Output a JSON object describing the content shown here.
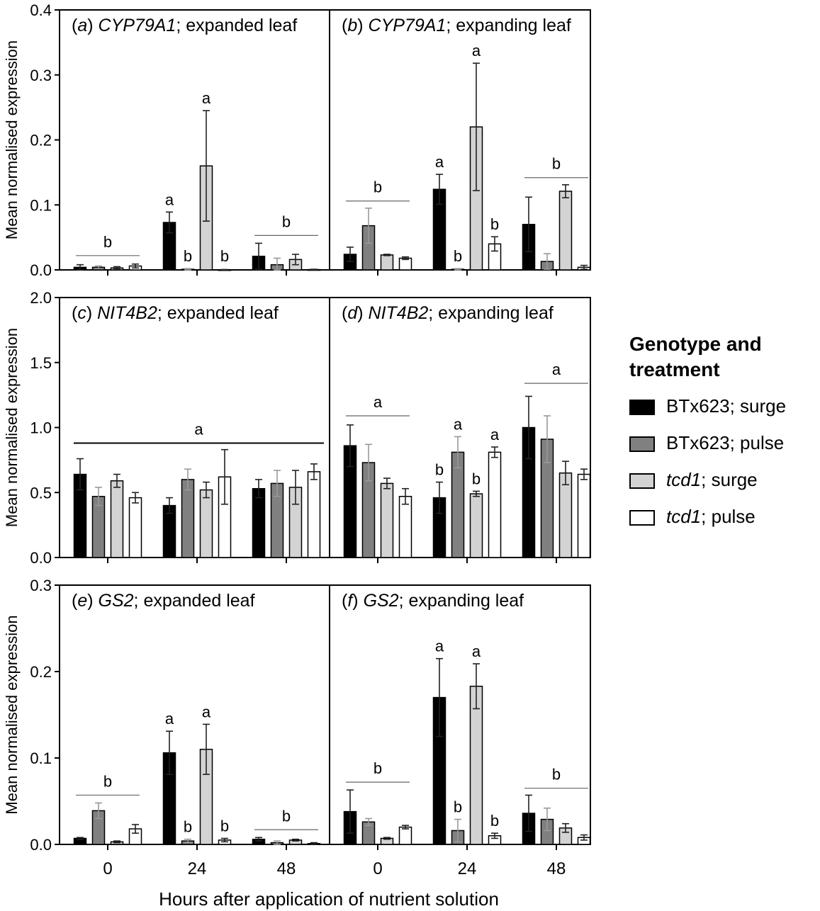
{
  "chart_data": {
    "type": "bar",
    "xlabel": "Hours after application of nutrient solution",
    "ylabel": "Mean normalised expression",
    "categories": [
      "0",
      "24",
      "48"
    ],
    "series_names": [
      "BTx623; surge",
      "BTx623; pulse",
      "tcd1; surge",
      "tcd1; pulse"
    ],
    "series_colors": [
      "#000000",
      "#808080",
      "#d3d3d3",
      "#ffffff"
    ],
    "panels": [
      {
        "id": "a",
        "gene": "CYP79A1",
        "tissue": "expanded leaf",
        "ylim": [
          0,
          0.4
        ],
        "yticks": [
          "0.0",
          "0.1",
          "0.2",
          "0.3",
          "0.4"
        ],
        "values": [
          [
            0.004,
            0.004,
            0.003,
            0.006
          ],
          [
            0.073,
            0.001,
            0.16,
            0.0003
          ],
          [
            0.021,
            0.008,
            0.016,
            0.0005
          ]
        ],
        "errors": [
          [
            0.004,
            0.002,
            0.002,
            0.003
          ],
          [
            0.016,
            0.001,
            0.085,
            0.0003
          ],
          [
            0.02,
            0.01,
            0.008,
            0.0005
          ]
        ],
        "bar_letters": [
          null,
          [
            "a",
            "b",
            "a",
            "b"
          ],
          null
        ],
        "group_letters": [
          {
            "x_from": 0,
            "x_to": 0,
            "y": 0.022,
            "text": "b"
          },
          {
            "x_from": 2,
            "x_to": 2,
            "y": 0.053,
            "text": "b"
          }
        ]
      },
      {
        "id": "b",
        "gene": "CYP79A1",
        "tissue": "expanding leaf",
        "ylim": [
          0,
          0.4
        ],
        "yticks": [
          "0.0",
          "0.1",
          "0.2",
          "0.3",
          "0.4"
        ],
        "values": [
          [
            0.024,
            0.068,
            0.023,
            0.018
          ],
          [
            0.124,
            0.001,
            0.22,
            0.04
          ],
          [
            0.07,
            0.013,
            0.121,
            0.004
          ]
        ],
        "errors": [
          [
            0.011,
            0.027,
            0.001,
            0.002
          ],
          [
            0.023,
            0.001,
            0.098,
            0.011
          ],
          [
            0.042,
            0.012,
            0.01,
            0.003
          ]
        ],
        "bar_letters": [
          null,
          [
            "a",
            "b",
            "a",
            "b"
          ],
          null
        ],
        "group_letters": [
          {
            "x_from": 0,
            "x_to": 0,
            "y": 0.106,
            "text": "b"
          },
          {
            "x_from": 2,
            "x_to": 2,
            "y": 0.142,
            "text": "b"
          }
        ]
      },
      {
        "id": "c",
        "gene": "NIT4B2",
        "tissue": "expanded leaf",
        "ylim": [
          0,
          2.0
        ],
        "yticks": [
          "0.0",
          "0.5",
          "1.0",
          "1.5",
          "2.0"
        ],
        "values": [
          [
            0.64,
            0.47,
            0.59,
            0.46
          ],
          [
            0.4,
            0.6,
            0.52,
            0.62
          ],
          [
            0.53,
            0.57,
            0.54,
            0.66
          ]
        ],
        "errors": [
          [
            0.12,
            0.07,
            0.05,
            0.04
          ],
          [
            0.06,
            0.08,
            0.06,
            0.21
          ],
          [
            0.07,
            0.1,
            0.13,
            0.06
          ]
        ],
        "bar_letters": [
          null,
          null,
          null
        ],
        "group_letters": [
          {
            "x_from": 0,
            "x_to": 2,
            "y": 0.88,
            "text": "a"
          }
        ]
      },
      {
        "id": "d",
        "gene": "NIT4B2",
        "tissue": "expanding leaf",
        "ylim": [
          0,
          2.0
        ],
        "yticks": [
          "0.0",
          "0.5",
          "1.0",
          "1.5",
          "2.0"
        ],
        "values": [
          [
            0.86,
            0.73,
            0.57,
            0.47
          ],
          [
            0.46,
            0.81,
            0.49,
            0.81
          ],
          [
            1.0,
            0.91,
            0.65,
            0.64
          ]
        ],
        "errors": [
          [
            0.16,
            0.14,
            0.04,
            0.06
          ],
          [
            0.12,
            0.12,
            0.02,
            0.04
          ],
          [
            0.24,
            0.18,
            0.09,
            0.04
          ]
        ],
        "bar_letters": [
          null,
          [
            "b",
            "a",
            "b",
            "a"
          ],
          null
        ],
        "group_letters": [
          {
            "x_from": 0,
            "x_to": 0,
            "y": 1.09,
            "text": "a"
          },
          {
            "x_from": 2,
            "x_to": 2,
            "y": 1.34,
            "text": "a"
          }
        ]
      },
      {
        "id": "e",
        "gene": "GS2",
        "tissue": "expanded leaf",
        "ylim": [
          0,
          0.3
        ],
        "yticks": [
          "0.0",
          "0.1",
          "0.2",
          "0.3"
        ],
        "values": [
          [
            0.007,
            0.039,
            0.003,
            0.018
          ],
          [
            0.106,
            0.004,
            0.11,
            0.005
          ],
          [
            0.006,
            0.002,
            0.005,
            0.001
          ]
        ],
        "errors": [
          [
            0.001,
            0.009,
            0.001,
            0.005
          ],
          [
            0.025,
            0.002,
            0.029,
            0.002
          ],
          [
            0.002,
            0.002,
            0.001,
            0.001
          ]
        ],
        "bar_letters": [
          null,
          [
            "a",
            "b",
            "a",
            "b"
          ],
          null
        ],
        "group_letters": [
          {
            "x_from": 0,
            "x_to": 0,
            "y": 0.057,
            "text": "b"
          },
          {
            "x_from": 2,
            "x_to": 2,
            "y": 0.017,
            "text": "b"
          }
        ]
      },
      {
        "id": "f",
        "gene": "GS2",
        "tissue": "expanding leaf",
        "ylim": [
          0,
          0.3
        ],
        "yticks": [
          "0.0",
          "0.1",
          "0.2",
          "0.3"
        ],
        "values": [
          [
            0.038,
            0.026,
            0.007,
            0.02
          ],
          [
            0.17,
            0.016,
            0.183,
            0.01
          ],
          [
            0.036,
            0.029,
            0.019,
            0.008
          ]
        ],
        "errors": [
          [
            0.025,
            0.004,
            0.001,
            0.002
          ],
          [
            0.045,
            0.013,
            0.026,
            0.003
          ],
          [
            0.021,
            0.013,
            0.005,
            0.003
          ]
        ],
        "bar_letters": [
          null,
          [
            "a",
            "b",
            "a",
            "b"
          ],
          null
        ],
        "group_letters": [
          {
            "x_from": 0,
            "x_to": 0,
            "y": 0.072,
            "text": "b"
          },
          {
            "x_from": 2,
            "x_to": 2,
            "y": 0.065,
            "text": "b"
          }
        ]
      }
    ]
  },
  "legend": {
    "title_line1": "Genotype and",
    "title_line2": "treatment",
    "items": [
      {
        "genotype": "BTx623",
        "treatment": "; surge",
        "italic": false
      },
      {
        "genotype": "BTx623",
        "treatment": "; pulse",
        "italic": false
      },
      {
        "genotype": "tcd1",
        "treatment": "; surge",
        "italic": true
      },
      {
        "genotype": "tcd1",
        "treatment": "; pulse",
        "italic": true
      }
    ]
  }
}
